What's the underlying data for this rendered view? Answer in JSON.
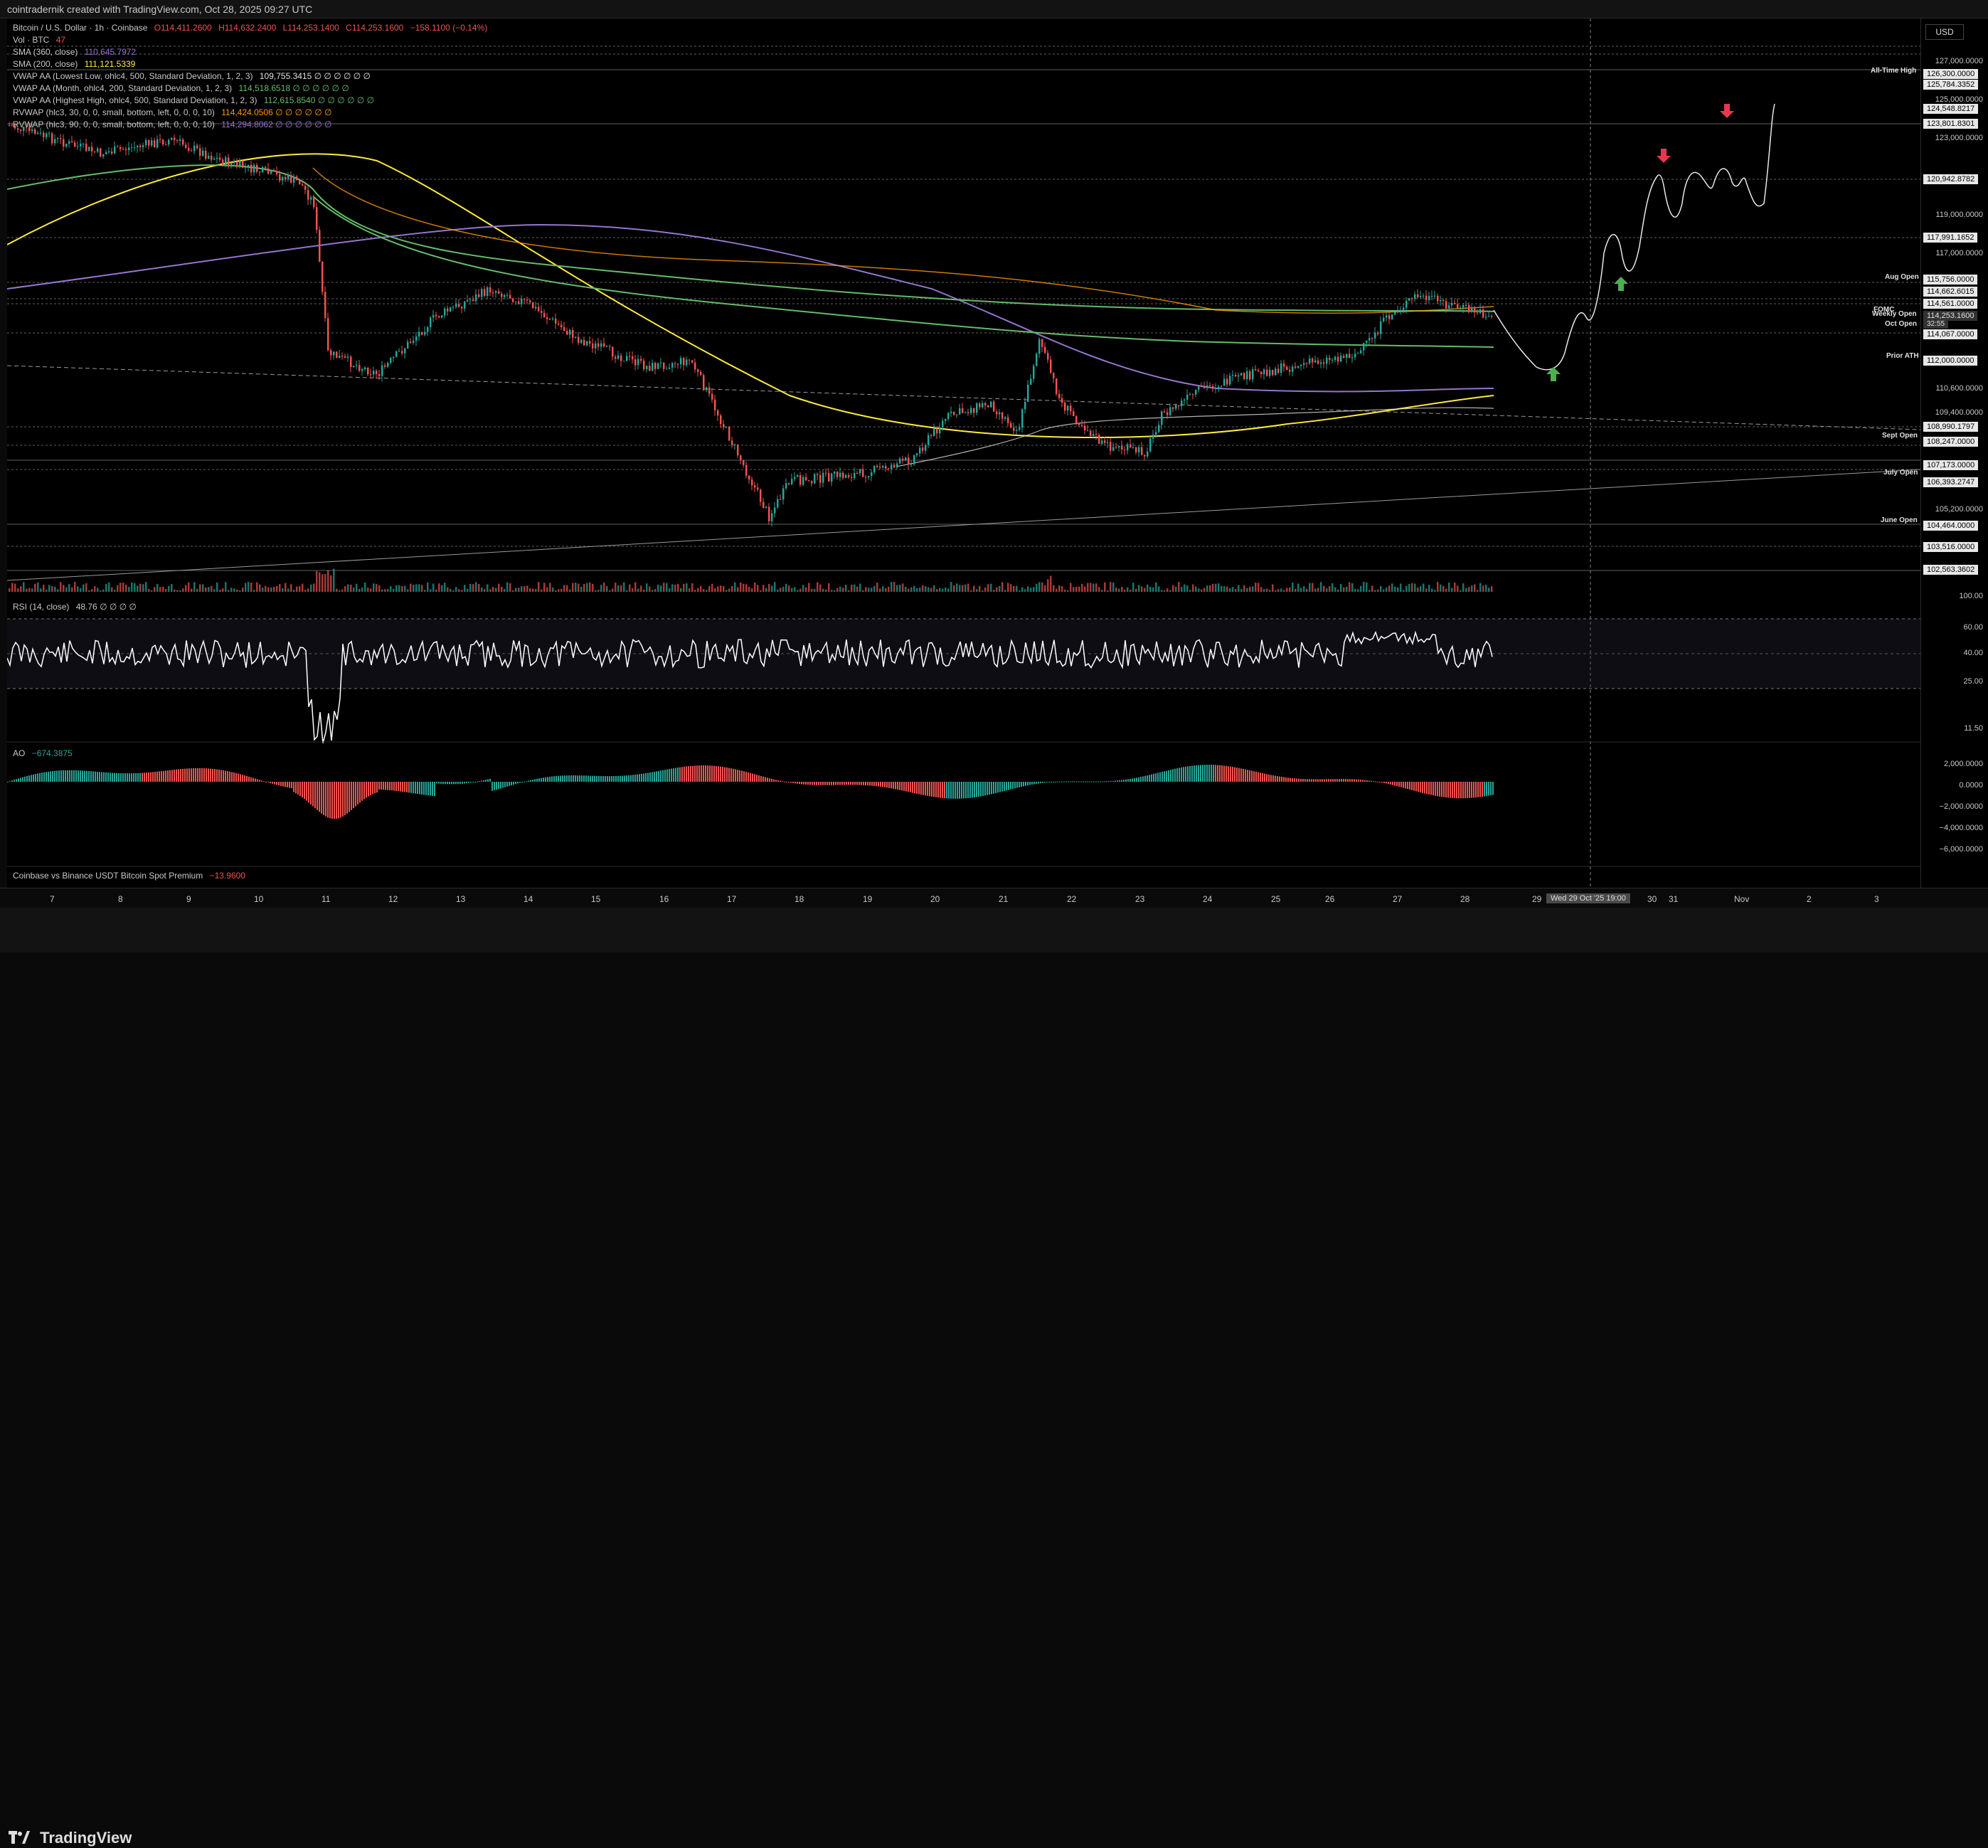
{
  "header": {
    "credit": "cointradernik created with TradingView.com, Oct 28, 2025 09:27 UTC"
  },
  "symbol": {
    "name": "Bitcoin / U.S. Dollar · 1h · Coinbase",
    "o": "O114,411.2600",
    "h": "H114,632.2400",
    "l": "L114,253.1400",
    "c": "C114,253.1600",
    "chg": "−158.1100 (−0.14%)"
  },
  "indicators": [
    {
      "label": "Vol · BTC",
      "value": "47",
      "color": "#ef5350"
    },
    {
      "label": "SMA (360, close)",
      "value": "110,645.7972",
      "color": "#9575cd"
    },
    {
      "label": "SMA (200, close)",
      "value": "111,121.5339",
      "color": "#ffeb3b"
    },
    {
      "label": "VWAP AA (Lowest Low, ohlc4, 500, Standard Deviation, 1, 2, 3)",
      "value": "109,755.3415 ∅ ∅ ∅ ∅ ∅ ∅",
      "color": "#e0e0e0"
    },
    {
      "label": "VWAP AA (Month, ohlc4, 200, Standard Deviation, 1, 2, 3)",
      "value": "114,518.6518 ∅ ∅ ∅ ∅ ∅ ∅",
      "color": "#66bb6a"
    },
    {
      "label": "VWAP AA (Highest High, ohlc4, 500, Standard Deviation, 1, 2, 3)",
      "value": "112,615.8540 ∅ ∅ ∅ ∅ ∅ ∅",
      "color": "#66bb6a"
    },
    {
      "label": "RVWAP (hlc3, 30, 0, 0, small, bottom, left, 0, 0, 0, 10)",
      "value": "114,424.0506 ∅ ∅ ∅ ∅ ∅ ∅",
      "color": "#ff9800"
    },
    {
      "label": "RVWAP (hlc3, 90, 0, 0, small, bottom, left, 0, 0, 0, 10)",
      "value": "114,294.8062 ∅ ∅ ∅ ∅ ∅ ∅",
      "color": "#9575cd"
    }
  ],
  "currency": "USD",
  "price_ticks": [
    "127,000.0000",
    "125,000.0000",
    "123,000.0000",
    "119,000.0000",
    "117,000.0000",
    "110,600.0000",
    "109,400.0000",
    "105,200.0000",
    "100.00"
  ],
  "price_labels": [
    {
      "text": "126,300.0000"
    },
    {
      "text": "125,784.3352"
    },
    {
      "text": "124,548.8217"
    },
    {
      "text": "123,801.8301"
    },
    {
      "text": "120,942.8782"
    },
    {
      "text": "117,991.1652"
    },
    {
      "text": "115,756.0000"
    },
    {
      "text": "114,662.6015"
    },
    {
      "text": "114,561.0000"
    },
    {
      "text": "114,253.1600",
      "current": true
    },
    {
      "text": "32:55",
      "current": true
    },
    {
      "text": "114,067.0000"
    },
    {
      "text": "112,000.0000"
    },
    {
      "text": "108,990.1797"
    },
    {
      "text": "108,247.0000"
    },
    {
      "text": "107,173.0000"
    },
    {
      "text": "106,393.2747"
    },
    {
      "text": "104,464.0000"
    },
    {
      "text": "103,516.0000"
    },
    {
      "text": "102,563.3602"
    }
  ],
  "levels": [
    "All-Time High",
    "Aug Open",
    "Weekly Open",
    "Oct Open",
    "Prior ATH",
    "Sept Open",
    "July Open",
    "June Open"
  ],
  "annotation": "FOMC",
  "rsi": {
    "title": "RSI (14, close)",
    "value": "48.76 ∅ ∅ ∅ ∅",
    "ticks": [
      "60.00",
      "40.00",
      "25.00",
      "11.50"
    ]
  },
  "ao": {
    "title": "AO",
    "value": "−674.3875",
    "ticks": [
      "2,000.0000",
      "0.0000",
      "−2,000.0000",
      "−4,000.0000",
      "−6,000.0000"
    ]
  },
  "premium": {
    "title": "Coinbase vs Binance USDT Bitcoin Spot Premium",
    "value": "−13.9600"
  },
  "time_labels": [
    "7",
    "8",
    "9",
    "10",
    "11",
    "12",
    "13",
    "14",
    "15",
    "16",
    "17",
    "18",
    "19",
    "20",
    "21",
    "22",
    "23",
    "24",
    "25",
    "26",
    "27",
    "28",
    "29",
    "30",
    "31",
    "Nov",
    "2",
    "3"
  ],
  "date_badge": "Wed 29 Oct '25  19:00",
  "brand": "TradingView",
  "colors": {
    "up": "#26a69a",
    "down": "#ef5350",
    "sma360": "#9575cd",
    "sma200": "#ffeb3b",
    "vwap_month": "#66bb6a",
    "rvwap30": "#ff9800",
    "rvwap90": "#9575cd",
    "arrow_up": "#4caf50",
    "arrow_down": "#e53950"
  }
}
